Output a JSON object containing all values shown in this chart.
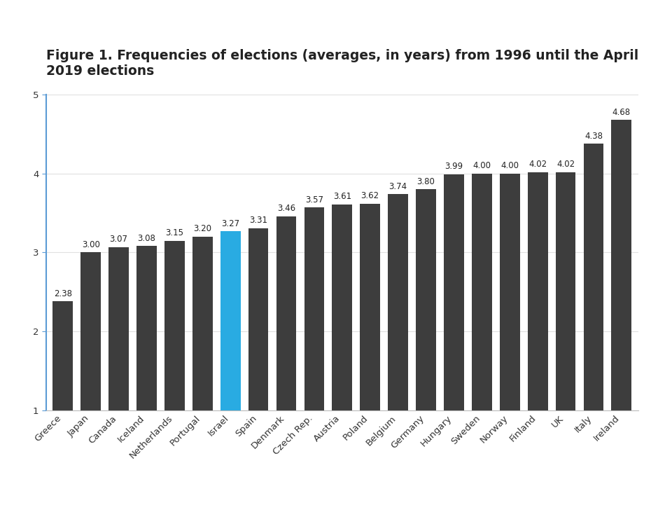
{
  "categories": [
    "Greece",
    "Japan",
    "Canada",
    "Iceland",
    "Netherlands",
    "Portugal",
    "Israel",
    "Spain",
    "Denmark",
    "Czech Rep.",
    "Austria",
    "Poland",
    "Belgium",
    "Germany",
    "Hungary",
    "Sweden",
    "Norway",
    "Finland",
    "UK",
    "Italy",
    "Ireland"
  ],
  "values": [
    2.38,
    3.0,
    3.07,
    3.08,
    3.15,
    3.2,
    3.27,
    3.31,
    3.46,
    3.57,
    3.61,
    3.62,
    3.74,
    3.8,
    3.99,
    4.0,
    4.0,
    4.02,
    4.02,
    4.38,
    4.68
  ],
  "bar_colors": [
    "#3d3d3d",
    "#3d3d3d",
    "#3d3d3d",
    "#3d3d3d",
    "#3d3d3d",
    "#3d3d3d",
    "#29abe2",
    "#3d3d3d",
    "#3d3d3d",
    "#3d3d3d",
    "#3d3d3d",
    "#3d3d3d",
    "#3d3d3d",
    "#3d3d3d",
    "#3d3d3d",
    "#3d3d3d",
    "#3d3d3d",
    "#3d3d3d",
    "#3d3d3d",
    "#3d3d3d",
    "#3d3d3d"
  ],
  "title": "Figure 1. Frequencies of elections (averages, in years) from 1996 until the April\n2019 elections",
  "ylim": [
    1,
    5
  ],
  "yticks": [
    1,
    2,
    3,
    4,
    5
  ],
  "background_color": "#ffffff",
  "plot_bg_color": "#ffffff",
  "title_fontsize": 13.5,
  "tick_fontsize": 9.5,
  "value_label_fontsize": 8.5,
  "bar_bottom": 1,
  "axis_line_color": "#5b9bd5",
  "bottom_spine_color": "#bbbbbb",
  "grid_color": "#e0e0e0"
}
